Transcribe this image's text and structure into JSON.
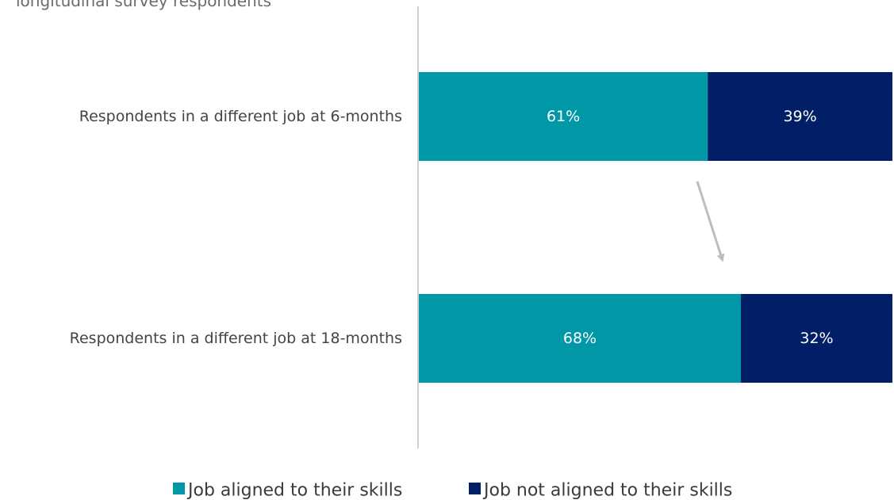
{
  "chart_data": {
    "type": "bar",
    "orientation": "horizontal",
    "stacked": true,
    "subtitle": "longitudinal survey respondents",
    "categories": [
      "Respondents in a different job at 6-months",
      "Respondents in a different job at 18-months"
    ],
    "series": [
      {
        "name": "Job aligned to their skills",
        "color": "#0097a7",
        "values": [
          61,
          68
        ],
        "labels": [
          "61%",
          "68%"
        ]
      },
      {
        "name": "Job not aligned to their skills",
        "color": "#001f66",
        "values": [
          39,
          32
        ],
        "labels": [
          "39%",
          "32%"
        ]
      }
    ],
    "xlim": [
      0,
      100
    ],
    "legend_position": "bottom",
    "grid": false,
    "arrow_color": "#bdbdbd",
    "axis_color": "#d0d0d0"
  }
}
